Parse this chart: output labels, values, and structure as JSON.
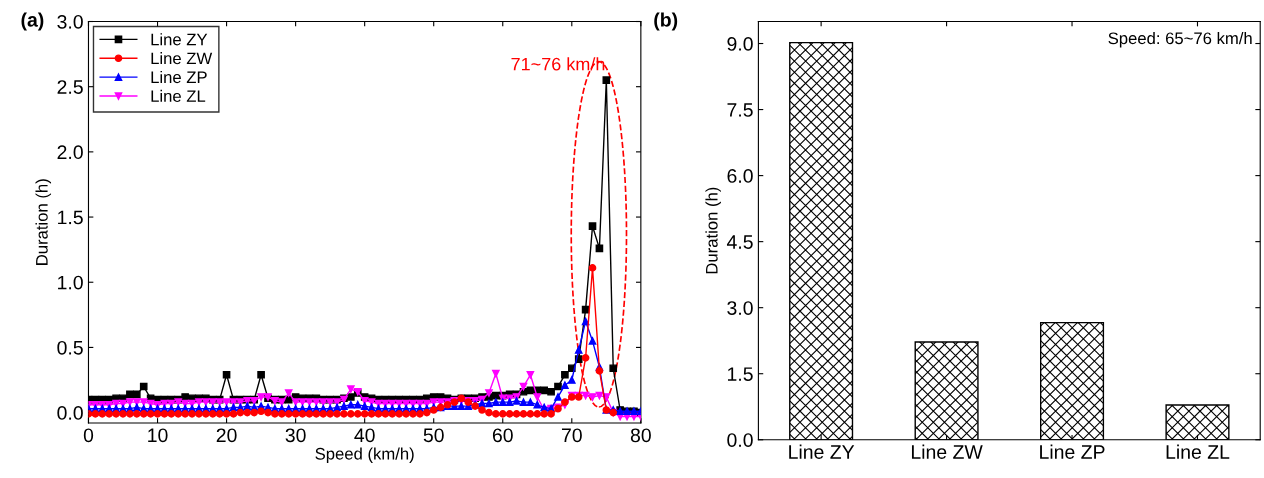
{
  "chart_data": [
    {
      "type": "line",
      "xlabel": "Speed (km/h)",
      "ylabel": "Duration (h)",
      "x": [
        0,
        1,
        2,
        3,
        4,
        5,
        6,
        7,
        8,
        9,
        10,
        11,
        12,
        13,
        14,
        15,
        16,
        17,
        18,
        19,
        20,
        21,
        22,
        23,
        24,
        25,
        26,
        27,
        28,
        29,
        30,
        31,
        32,
        33,
        34,
        35,
        36,
        37,
        38,
        39,
        40,
        41,
        42,
        43,
        44,
        45,
        46,
        47,
        48,
        49,
        50,
        51,
        52,
        53,
        54,
        55,
        56,
        57,
        58,
        59,
        60,
        61,
        62,
        63,
        64,
        65,
        66,
        67,
        68,
        69,
        70,
        71,
        72,
        73,
        74,
        75,
        76,
        77,
        78,
        79,
        80
      ],
      "xlim": [
        0,
        80
      ],
      "xticks": [
        0,
        10,
        20,
        30,
        40,
        50,
        60,
        70,
        80
      ],
      "ylim": [
        -0.08,
        3.0
      ],
      "yticks": [
        {
          "value": 0,
          "label": "0.0"
        },
        {
          "value": 0.5,
          "label": "0.5"
        },
        {
          "value": 1,
          "label": "1.0"
        },
        {
          "value": 1.5,
          "label": "1.5"
        },
        {
          "value": 2,
          "label": "2.0"
        },
        {
          "value": 2.5,
          "label": "2.5"
        },
        {
          "value": 3,
          "label": "3.0"
        }
      ],
      "legend": "top left",
      "grid": false,
      "line_style": "solid",
      "annotations": [
        "(a)",
        "71~76 km/h"
      ],
      "series": [
        {
          "name": "Line ZY",
          "color": "#000000",
          "marker": "square",
          "values": [
            0.1,
            0.1,
            0.1,
            0.1,
            0.11,
            0.11,
            0.14,
            0.14,
            0.2,
            0.11,
            0.1,
            0.1,
            0.1,
            0.1,
            0.12,
            0.11,
            0.11,
            0.11,
            0.1,
            0.1,
            0.29,
            0.1,
            0.1,
            0.1,
            0.1,
            0.29,
            0.11,
            0.1,
            0.1,
            0.1,
            0.12,
            0.11,
            0.11,
            0.11,
            0.1,
            0.1,
            0.1,
            0.11,
            0.12,
            0.15,
            0.12,
            0.11,
            0.1,
            0.1,
            0.1,
            0.1,
            0.1,
            0.1,
            0.1,
            0.11,
            0.12,
            0.12,
            0.11,
            0.1,
            0.11,
            0.11,
            0.11,
            0.12,
            0.12,
            0.13,
            0.13,
            0.14,
            0.14,
            0.16,
            0.17,
            0.17,
            0.17,
            0.16,
            0.2,
            0.29,
            0.34,
            0.41,
            0.79,
            1.43,
            1.26,
            2.55,
            0.34,
            0.02,
            0.01,
            0.01,
            0.0
          ]
        },
        {
          "name": "Line ZW",
          "color": "#ff0000",
          "marker": "circle",
          "values": [
            -0.01,
            -0.01,
            -0.01,
            -0.01,
            -0.01,
            -0.01,
            -0.01,
            -0.01,
            -0.01,
            -0.01,
            -0.01,
            -0.01,
            -0.01,
            -0.01,
            -0.01,
            -0.01,
            -0.01,
            -0.01,
            -0.01,
            -0.01,
            -0.01,
            -0.01,
            0.0,
            0.0,
            0.0,
            0.01,
            0.0,
            -0.01,
            -0.01,
            -0.01,
            -0.01,
            -0.01,
            -0.01,
            -0.01,
            -0.01,
            -0.01,
            -0.01,
            -0.01,
            -0.01,
            -0.01,
            -0.01,
            -0.01,
            -0.01,
            -0.01,
            -0.01,
            -0.01,
            -0.01,
            -0.01,
            -0.01,
            0.0,
            0.02,
            0.04,
            0.06,
            0.08,
            0.11,
            0.08,
            0.05,
            0.02,
            0.0,
            -0.01,
            -0.01,
            -0.01,
            -0.01,
            -0.01,
            -0.01,
            -0.01,
            -0.01,
            -0.01,
            0.03,
            0.08,
            0.12,
            0.12,
            0.42,
            1.11,
            0.32,
            0.02,
            0.0,
            null,
            null,
            null,
            null
          ]
        },
        {
          "name": "Line ZP",
          "color": "#0000ff",
          "marker": "triangle",
          "values": [
            0.03,
            0.03,
            0.03,
            0.03,
            0.03,
            0.03,
            0.03,
            0.04,
            0.03,
            0.03,
            0.03,
            0.03,
            0.03,
            0.03,
            0.03,
            0.03,
            0.03,
            0.03,
            0.03,
            0.03,
            0.03,
            0.04,
            0.04,
            0.05,
            0.04,
            0.05,
            0.04,
            0.03,
            0.03,
            0.03,
            0.03,
            0.03,
            0.03,
            0.03,
            0.03,
            0.03,
            0.04,
            0.05,
            0.06,
            0.06,
            0.05,
            0.04,
            0.03,
            0.03,
            0.03,
            0.03,
            0.03,
            0.03,
            0.03,
            0.03,
            0.04,
            0.04,
            0.05,
            0.05,
            0.05,
            0.05,
            0.06,
            0.07,
            0.07,
            0.08,
            0.08,
            0.08,
            0.09,
            0.08,
            0.08,
            0.06,
            0.04,
            0.03,
            0.12,
            0.21,
            0.25,
            0.48,
            0.7,
            0.55,
            0.35,
            0.02,
            0.02,
            0.01,
            0.01,
            0.01,
            0.01
          ]
        },
        {
          "name": "Line ZL",
          "color": "#ff00ff",
          "marker": "triangle_down",
          "values": [
            0.06,
            0.06,
            0.06,
            0.06,
            0.07,
            0.07,
            0.08,
            0.08,
            0.08,
            0.07,
            0.06,
            0.07,
            0.07,
            0.08,
            0.07,
            0.07,
            0.08,
            0.08,
            0.08,
            0.08,
            0.08,
            0.08,
            0.08,
            0.09,
            0.09,
            0.12,
            0.12,
            0.09,
            0.08,
            0.15,
            0.08,
            0.08,
            0.08,
            0.08,
            0.08,
            0.08,
            0.08,
            0.1,
            0.18,
            0.16,
            0.09,
            0.08,
            0.07,
            0.07,
            0.07,
            0.07,
            0.07,
            0.07,
            0.07,
            0.07,
            0.08,
            0.08,
            0.08,
            0.09,
            0.09,
            0.09,
            0.09,
            0.1,
            0.15,
            0.3,
            0.11,
            0.11,
            0.12,
            0.2,
            0.29,
            0.12,
            0.02,
            0.03,
            0.04,
            0.06,
            0.13,
            0.13,
            0.13,
            0.12,
            0.13,
            0.12,
            0.0,
            -0.03,
            -0.03,
            -0.03,
            -0.03
          ]
        }
      ]
    },
    {
      "type": "bar",
      "ylabel": "Duration (h)",
      "categories": [
        "Line ZY",
        "Line ZW",
        "Line ZP",
        "Line ZL"
      ],
      "values": [
        9.02,
        2.22,
        2.66,
        0.79
      ],
      "color": "#000000",
      "ylim": [
        0,
        9.5
      ],
      "yticks": [
        {
          "value": 0,
          "label": "0.0"
        },
        {
          "value": 1.5,
          "label": "1.5"
        },
        {
          "value": 3,
          "label": "3.0"
        },
        {
          "value": 4.5,
          "label": "4.5"
        },
        {
          "value": 6,
          "label": "6.0"
        },
        {
          "value": 7.5,
          "label": "7.5"
        },
        {
          "value": 9,
          "label": "9.0"
        }
      ],
      "grid": false,
      "legend": false,
      "annotations": [
        "(b)",
        "Speed: 65~76 km/h"
      ]
    }
  ]
}
